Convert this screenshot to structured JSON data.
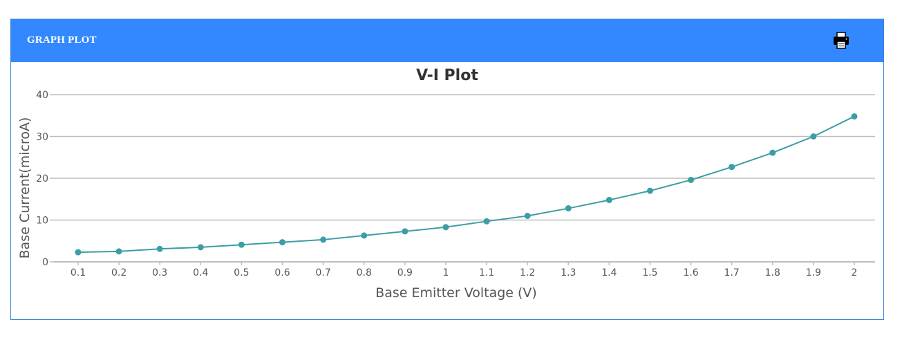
{
  "panel": {
    "title": "GRAPH PLOT",
    "print_icon": "printer-icon",
    "header_color": "#3388ff"
  },
  "chart_data": {
    "type": "line",
    "title": "V-I Plot",
    "xlabel": "Base Emitter Voltage (V)",
    "ylabel": "Base Current(microA)",
    "categories": [
      "0.1",
      "0.2",
      "0.3",
      "0.4",
      "0.5",
      "0.6",
      "0.7",
      "0.8",
      "0.9",
      "1",
      "1.1",
      "1.2",
      "1.3",
      "1.4",
      "1.5",
      "1.6",
      "1.7",
      "1.8",
      "1.9",
      "2"
    ],
    "series": [
      {
        "values": [
          2.3,
          2.5,
          3.1,
          3.5,
          4.1,
          4.7,
          5.3,
          6.3,
          7.3,
          8.3,
          9.7,
          11.0,
          12.8,
          14.8,
          17.0,
          19.6,
          22.7,
          26.1,
          30.0,
          34.8
        ],
        "color": "#3a9ea5"
      }
    ],
    "ylim": [
      0,
      40
    ],
    "yticks": [
      0,
      10,
      20,
      30,
      40
    ],
    "grid": true,
    "legend": "none"
  }
}
